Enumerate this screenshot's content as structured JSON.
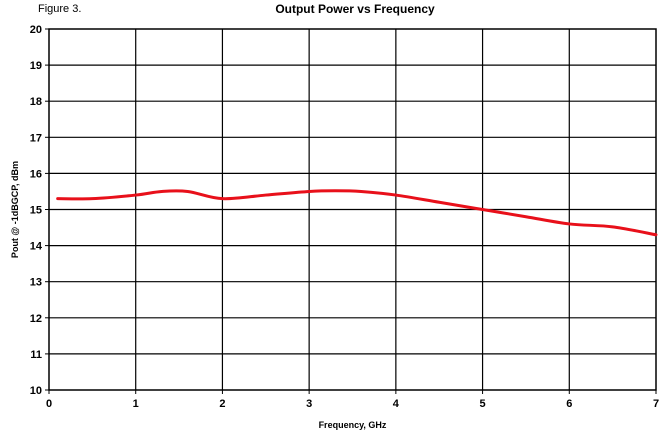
{
  "figure_label": "Figure 3.",
  "chart_data": {
    "type": "line",
    "title": "Output Power vs Frequency",
    "xlabel": "Frequency, GHz",
    "ylabel": "Pout @ -1dBGCP, dBm",
    "xlim": [
      0,
      7
    ],
    "ylim": [
      10,
      20
    ],
    "x_ticks": [
      0,
      1,
      2,
      3,
      4,
      5,
      6,
      7
    ],
    "y_ticks": [
      10,
      11,
      12,
      13,
      14,
      15,
      16,
      17,
      18,
      19,
      20
    ],
    "grid": true,
    "series": [
      {
        "color": "#e8101a",
        "x": [
          0.1,
          0.5,
          1.0,
          1.3,
          1.6,
          2.0,
          2.5,
          3.0,
          3.3,
          3.6,
          4.0,
          4.5,
          5.0,
          5.5,
          6.0,
          6.5,
          7.0
        ],
        "y": [
          15.3,
          15.3,
          15.4,
          15.5,
          15.5,
          15.3,
          15.4,
          15.5,
          15.52,
          15.5,
          15.4,
          15.2,
          15.0,
          14.8,
          14.6,
          14.52,
          14.3
        ]
      }
    ]
  }
}
